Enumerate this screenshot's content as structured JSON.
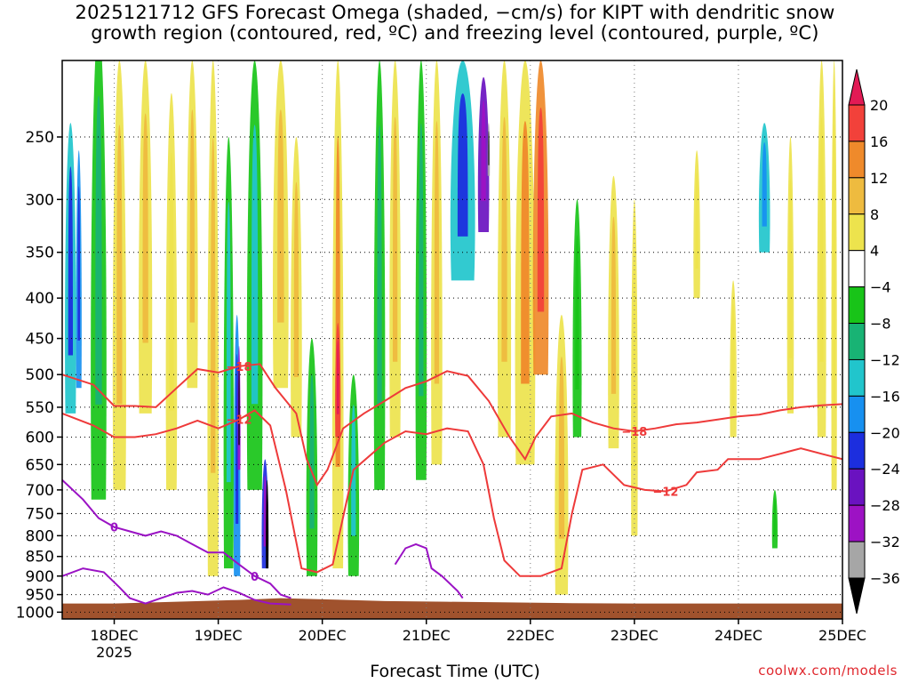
{
  "title_line1": "2025121712 GFS Forecast Omega (shaded, −cm/s) for KIPT with dendritic snow",
  "title_line2": "growth region (contoured, red, ºC) and freezing level (contoured, purple, ºC)",
  "credit": "coolwx.com/models",
  "chart_data": {
    "type": "heatmap",
    "xlabel": "Forecast Time (UTC)",
    "ylabel": "",
    "x_ticks": [
      {
        "label": "18DEC",
        "sub": "2025",
        "t": 1
      },
      {
        "label": "19DEC",
        "t": 2
      },
      {
        "label": "20DEC",
        "t": 3
      },
      {
        "label": "21DEC",
        "t": 4
      },
      {
        "label": "22DEC",
        "t": 5
      },
      {
        "label": "23DEC",
        "t": 6
      },
      {
        "label": "24DEC",
        "t": 7
      },
      {
        "label": "25DEC",
        "t": 8
      }
    ],
    "xlim": [
      0.5,
      8.0
    ],
    "y_ticks": [
      250,
      300,
      350,
      400,
      450,
      500,
      550,
      600,
      650,
      700,
      750,
      800,
      850,
      900,
      950,
      1000
    ],
    "ylim": [
      200,
      1020
    ],
    "y_scale": "log-pressure",
    "grid": true,
    "colorbar": {
      "levels": [
        20,
        16,
        12,
        8,
        4,
        -4,
        -8,
        -12,
        -16,
        -20,
        -24,
        -28,
        -32,
        -36
      ],
      "colors": [
        "#e21a55",
        "#f2413a",
        "#ef8a2b",
        "#eebb3f",
        "#ede34d",
        "#ffffff",
        "#18c418",
        "#18b374",
        "#21c5cc",
        "#1790f0",
        "#1c2ede",
        "#6a12c0",
        "#9d12c4",
        "#a6a6a6",
        "#000000"
      ]
    },
    "contours": [
      {
        "color": "#ee3a3a",
        "value": -18,
        "label": "−18",
        "points": [
          [
            0.5,
            500
          ],
          [
            0.8,
            515
          ],
          [
            1.0,
            548
          ],
          [
            1.2,
            548
          ],
          [
            1.4,
            550
          ],
          [
            1.6,
            520
          ],
          [
            1.8,
            492
          ],
          [
            2.0,
            497
          ],
          [
            2.2,
            488
          ],
          [
            2.4,
            485
          ],
          [
            2.55,
            520
          ],
          [
            2.75,
            560
          ],
          [
            2.85,
            640
          ],
          [
            2.95,
            690
          ],
          [
            3.05,
            660
          ],
          [
            3.2,
            585
          ],
          [
            3.4,
            560
          ],
          [
            3.6,
            540
          ],
          [
            3.8,
            520
          ],
          [
            4.0,
            510
          ],
          [
            4.2,
            495
          ],
          [
            4.4,
            502
          ],
          [
            4.6,
            540
          ],
          [
            4.8,
            600
          ],
          [
            4.95,
            640
          ],
          [
            5.05,
            600
          ],
          [
            5.2,
            565
          ],
          [
            5.4,
            560
          ],
          [
            5.6,
            575
          ],
          [
            5.8,
            585
          ],
          [
            6.0,
            590
          ],
          [
            6.2,
            585
          ],
          [
            6.4,
            578
          ],
          [
            6.6,
            575
          ],
          [
            6.8,
            570
          ],
          [
            7.0,
            565
          ],
          [
            7.2,
            562
          ],
          [
            7.4,
            555
          ],
          [
            7.6,
            550
          ],
          [
            7.8,
            547
          ],
          [
            8.0,
            545
          ]
        ]
      },
      {
        "color": "#ee3a3a",
        "value": -12,
        "label": "−12",
        "points": [
          [
            0.5,
            560
          ],
          [
            0.8,
            580
          ],
          [
            1.0,
            600
          ],
          [
            1.2,
            600
          ],
          [
            1.4,
            595
          ],
          [
            1.6,
            585
          ],
          [
            1.8,
            572
          ],
          [
            2.0,
            585
          ],
          [
            2.2,
            570
          ],
          [
            2.35,
            555
          ],
          [
            2.5,
            580
          ],
          [
            2.65,
            700
          ],
          [
            2.8,
            880
          ],
          [
            2.95,
            890
          ],
          [
            3.1,
            870
          ],
          [
            3.3,
            660
          ],
          [
            3.6,
            610
          ],
          [
            3.8,
            590
          ],
          [
            4.0,
            595
          ],
          [
            4.2,
            585
          ],
          [
            4.4,
            590
          ],
          [
            4.55,
            650
          ],
          [
            4.65,
            760
          ],
          [
            4.75,
            860
          ],
          [
            4.9,
            900
          ],
          [
            5.1,
            900
          ],
          [
            5.3,
            880
          ],
          [
            5.4,
            750
          ],
          [
            5.5,
            660
          ],
          [
            5.7,
            650
          ],
          [
            5.9,
            690
          ],
          [
            6.1,
            700
          ],
          [
            6.3,
            703
          ],
          [
            6.5,
            690
          ],
          [
            6.6,
            665
          ],
          [
            6.8,
            660
          ],
          [
            6.9,
            640
          ],
          [
            7.0,
            640
          ],
          [
            7.2,
            640
          ],
          [
            7.4,
            630
          ],
          [
            7.6,
            620
          ],
          [
            7.8,
            630
          ],
          [
            8.0,
            640
          ]
        ]
      },
      {
        "color": "#9a12c4",
        "value": 0,
        "label": "0",
        "points": [
          [
            0.5,
            680
          ],
          [
            0.7,
            720
          ],
          [
            0.85,
            760
          ],
          [
            1.0,
            780
          ],
          [
            1.15,
            790
          ],
          [
            1.3,
            800
          ],
          [
            1.45,
            790
          ],
          [
            1.6,
            800
          ],
          [
            1.75,
            820
          ],
          [
            1.9,
            840
          ],
          [
            2.05,
            840
          ],
          [
            2.2,
            870
          ],
          [
            2.35,
            900
          ],
          [
            2.5,
            920
          ],
          [
            2.6,
            950
          ],
          [
            2.7,
            960
          ]
        ]
      },
      {
        "color": "#9a12c4",
        "value": 0,
        "label": "",
        "points": [
          [
            0.5,
            900
          ],
          [
            0.7,
            880
          ],
          [
            0.9,
            890
          ],
          [
            1.05,
            930
          ],
          [
            1.15,
            960
          ],
          [
            1.3,
            975
          ],
          [
            1.45,
            960
          ],
          [
            1.6,
            945
          ],
          [
            1.75,
            940
          ],
          [
            1.9,
            950
          ],
          [
            2.05,
            930
          ],
          [
            2.2,
            945
          ],
          [
            2.35,
            965
          ],
          [
            2.5,
            975
          ],
          [
            2.7,
            978
          ]
        ]
      },
      {
        "color": "#9a12c4",
        "value": 0,
        "label": "",
        "points": [
          [
            3.7,
            870
          ],
          [
            3.8,
            830
          ],
          [
            3.9,
            820
          ],
          [
            4.0,
            830
          ],
          [
            4.05,
            880
          ],
          [
            4.15,
            900
          ],
          [
            4.3,
            940
          ],
          [
            4.35,
            960
          ]
        ]
      }
    ]
  }
}
